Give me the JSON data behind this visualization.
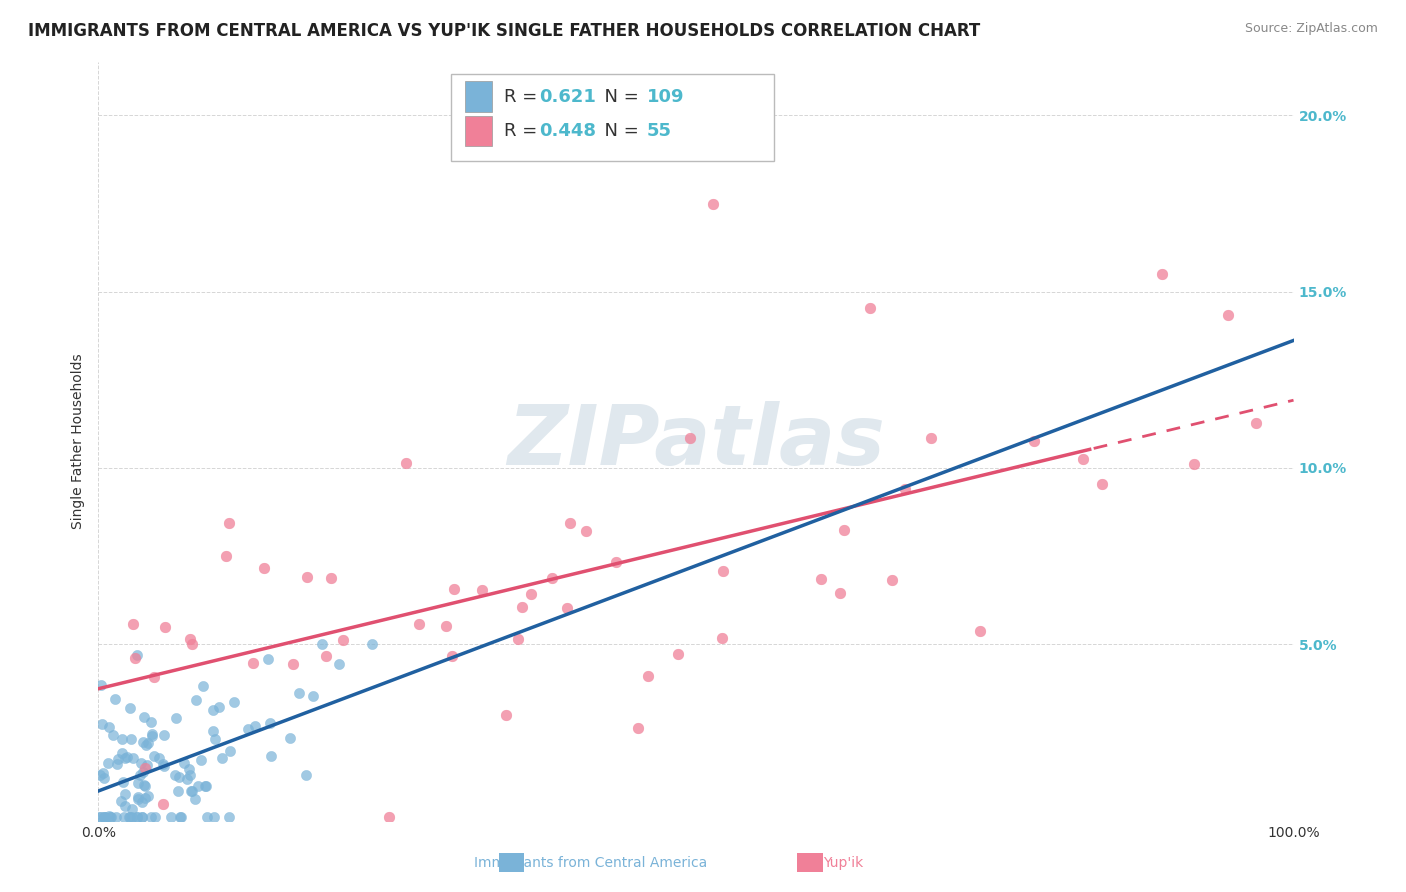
{
  "title": "IMMIGRANTS FROM CENTRAL AMERICA VS YUP'IK SINGLE FATHER HOUSEHOLDS CORRELATION CHART",
  "source": "Source: ZipAtlas.com",
  "ylabel": "Single Father Households",
  "ytick_values": [
    0.0,
    0.05,
    0.1,
    0.15,
    0.2
  ],
  "ytick_labels": [
    "",
    "5.0%",
    "10.0%",
    "15.0%",
    "20.0%"
  ],
  "xlim": [
    0.0,
    1.0
  ],
  "ylim": [
    0.0,
    0.215
  ],
  "legend_r_blue": "0.621",
  "legend_n_blue": "109",
  "legend_r_pink": "0.448",
  "legend_n_pink": "55",
  "watermark": "ZIPatlas",
  "bg_color": "#ffffff",
  "blue_color": "#7ab3d8",
  "pink_color": "#f08098",
  "reg_blue_color": "#2060a0",
  "reg_pink_color": "#e05070",
  "grid_color": "#cccccc",
  "tick_color": "#4db8cc",
  "title_fontsize": 12,
  "label_fontsize": 10,
  "tick_fontsize": 10,
  "source_fontsize": 9,
  "legend_fontsize": 12
}
